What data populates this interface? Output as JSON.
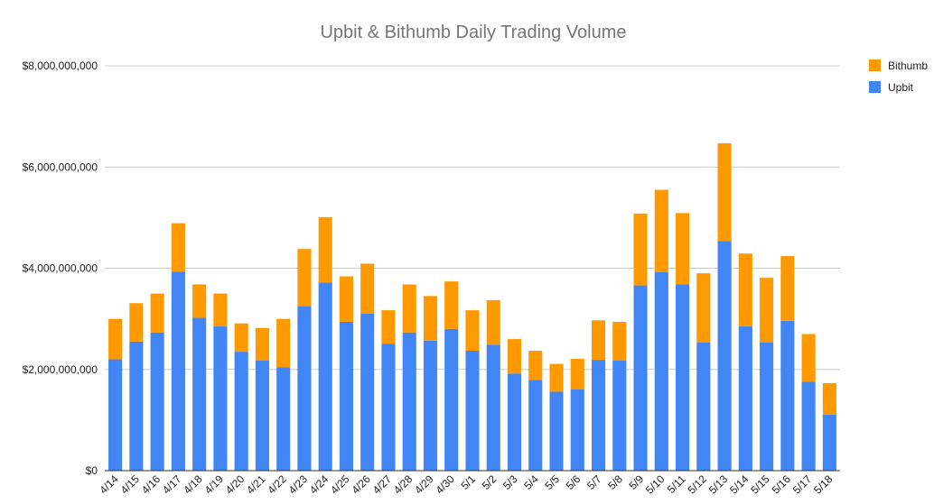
{
  "chart_data": {
    "type": "bar",
    "stacked": true,
    "title": "Upbit & Bithumb Daily Trading Volume",
    "xlabel": "",
    "ylabel": "",
    "ylim": [
      0,
      8000000000
    ],
    "yticks": [
      0,
      2000000000,
      4000000000,
      6000000000,
      8000000000
    ],
    "ytick_labels": [
      "$0",
      "$2,000,000,000",
      "$4,000,000,000",
      "$6,000,000,000",
      "$8,000,000,000"
    ],
    "grid": true,
    "legend_position": "top-right",
    "categories": [
      "4/14",
      "4/15",
      "4/16",
      "4/17",
      "4/18",
      "4/19",
      "4/20",
      "4/21",
      "4/22",
      "4/23",
      "4/24",
      "4/25",
      "4/26",
      "4/27",
      "4/28",
      "4/29",
      "4/30",
      "5/1",
      "5/2",
      "5/3",
      "5/4",
      "5/5",
      "5/6",
      "5/7",
      "5/8",
      "5/9",
      "5/10",
      "5/11",
      "5/12",
      "5/13",
      "5/14",
      "5/15",
      "5/16",
      "5/17",
      "5/18"
    ],
    "series": [
      {
        "name": "Upbit",
        "color": "#4285F4",
        "values": [
          2200000000,
          2550000000,
          2730000000,
          3930000000,
          3020000000,
          2850000000,
          2350000000,
          2180000000,
          2040000000,
          3250000000,
          3720000000,
          2940000000,
          3100000000,
          2510000000,
          2730000000,
          2570000000,
          2800000000,
          2370000000,
          2490000000,
          1920000000,
          1790000000,
          1560000000,
          1610000000,
          2190000000,
          2180000000,
          3660000000,
          3920000000,
          3680000000,
          2530000000,
          4540000000,
          2850000000,
          2530000000,
          2960000000,
          1760000000,
          1110000000
        ]
      },
      {
        "name": "Bithumb",
        "color": "#FF9900",
        "values": [
          800000000,
          760000000,
          770000000,
          960000000,
          660000000,
          650000000,
          560000000,
          640000000,
          960000000,
          1130000000,
          1290000000,
          900000000,
          990000000,
          660000000,
          950000000,
          880000000,
          940000000,
          800000000,
          880000000,
          680000000,
          580000000,
          550000000,
          600000000,
          780000000,
          760000000,
          1420000000,
          1630000000,
          1410000000,
          1370000000,
          1930000000,
          1440000000,
          1280000000,
          1280000000,
          940000000,
          620000000
        ]
      }
    ],
    "legend": [
      {
        "name": "Bithumb",
        "color": "#FF9900"
      },
      {
        "name": "Upbit",
        "color": "#4285F4"
      }
    ]
  }
}
